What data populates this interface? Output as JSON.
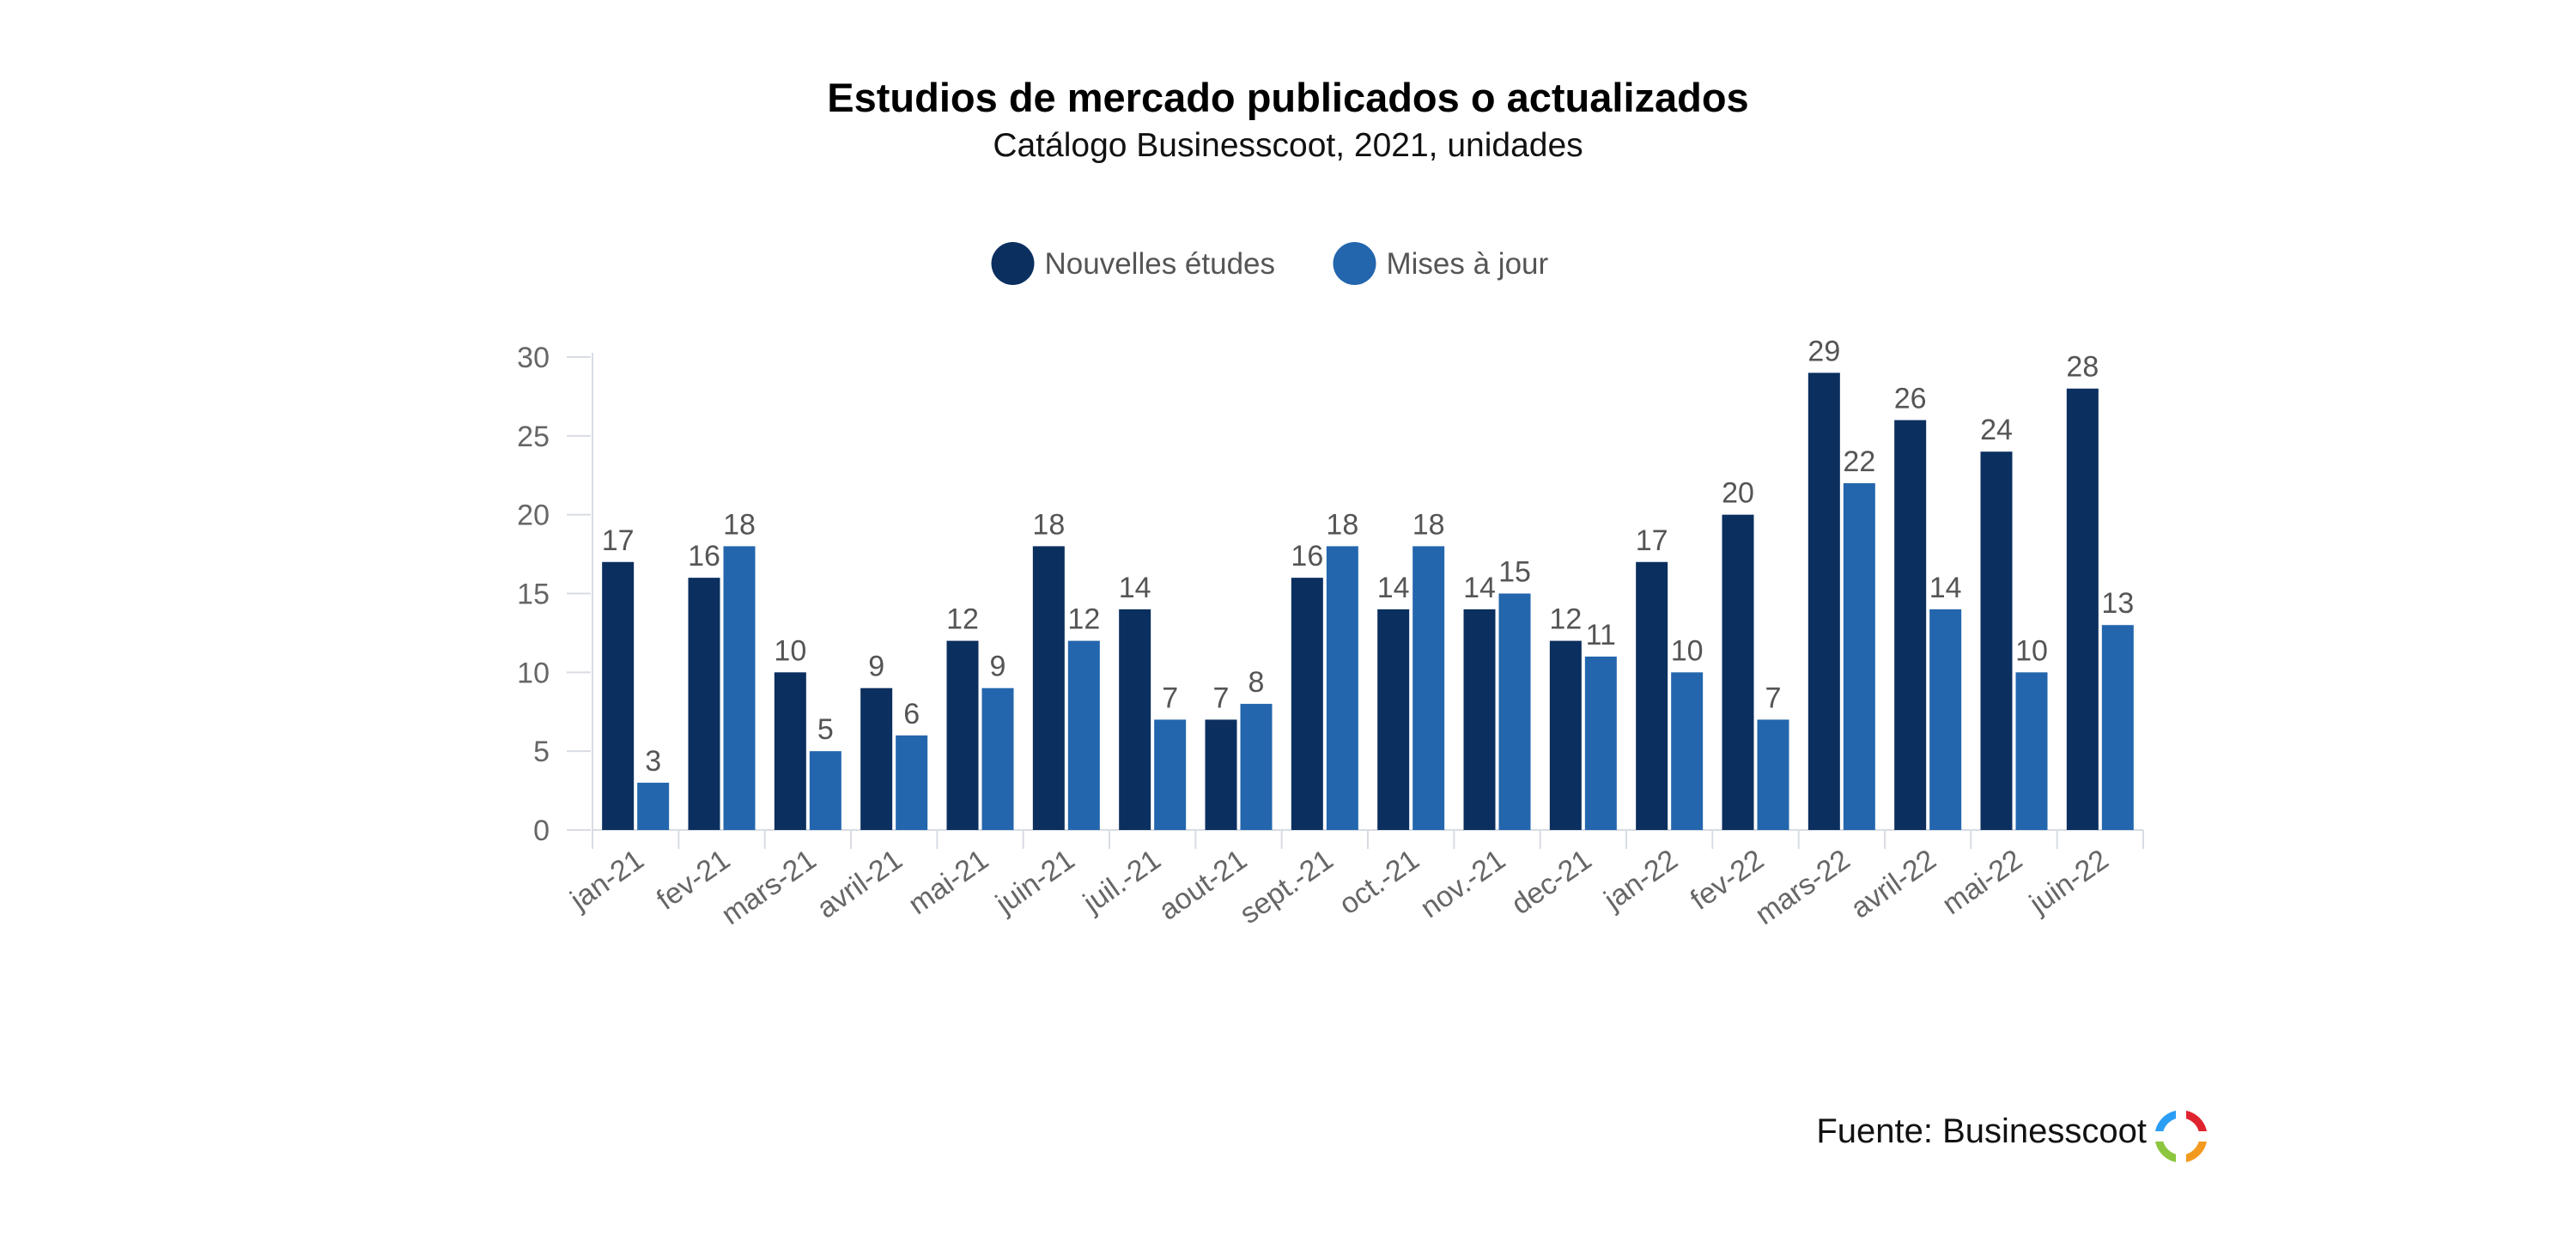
{
  "header": {
    "title": "Estudios de mercado publicados o actualizados",
    "subtitle": "Catálogo Businesscoot, 2021, unidades"
  },
  "footer": {
    "source": "Fuente: Businesscoot",
    "logo_icon": "businesscoot-logo-icon"
  },
  "chart_data": {
    "type": "bar",
    "categories": [
      "jan-21",
      "fev-21",
      "mars-21",
      "avril-21",
      "mai-21",
      "juin-21",
      "juil.-21",
      "aout-21",
      "sept.-21",
      "oct.-21",
      "nov.-21",
      "dec-21",
      "jan-22",
      "fev-22",
      "mars-22",
      "avril-22",
      "mai-22",
      "juin-22"
    ],
    "series": [
      {
        "name": "Nouvelles études",
        "color": "#0b2f5f",
        "values": [
          17,
          16,
          10,
          9,
          12,
          18,
          14,
          7,
          16,
          14,
          14,
          12,
          17,
          20,
          29,
          26,
          24,
          28
        ]
      },
      {
        "name": "Mises à jour",
        "color": "#2366ad",
        "values": [
          3,
          18,
          5,
          6,
          9,
          12,
          7,
          8,
          18,
          18,
          15,
          11,
          10,
          7,
          22,
          14,
          10,
          13
        ]
      }
    ],
    "ylim": [
      0,
      30
    ],
    "yticks": [
      0,
      5,
      10,
      15,
      20,
      25,
      30
    ],
    "data_labels": true,
    "grid": false,
    "legend_position": "top-center"
  }
}
